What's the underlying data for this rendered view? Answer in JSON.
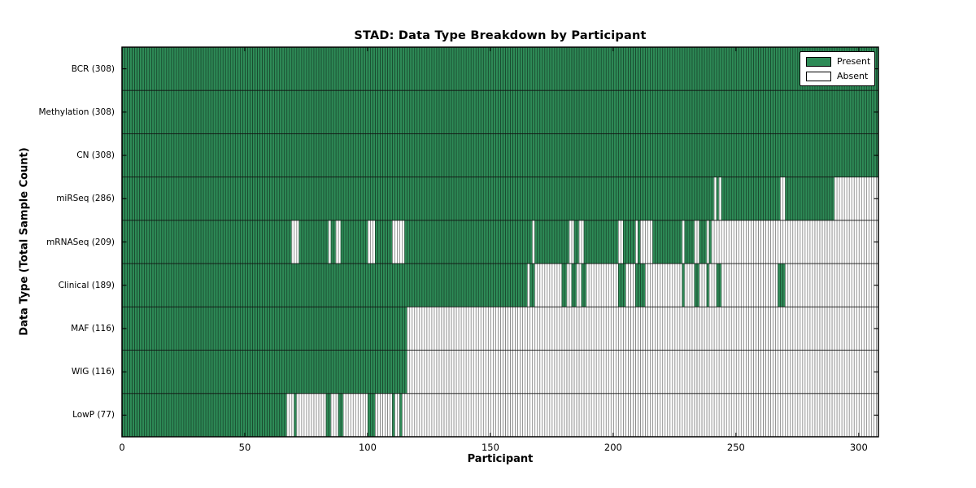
{
  "chart_data": {
    "type": "heatmap",
    "title": "STAD: Data Type Breakdown by Participant",
    "xlabel": "Participant",
    "ylabel": "Data Type (Total Sample Count)",
    "x_ticks": [
      0,
      50,
      100,
      150,
      200,
      250,
      300
    ],
    "x_range": [
      0,
      308
    ],
    "n_participants": 308,
    "grid": false,
    "legend": {
      "position": "upper right",
      "entries": [
        {
          "label": "Present",
          "color": "#2e8b57"
        },
        {
          "label": "Absent",
          "color": "#ffffff"
        }
      ]
    },
    "colors": {
      "present": "#2e8b57",
      "absent": "#ffffff",
      "bar_edge": "rgba(0,0,0,0.5)",
      "border": "#000000"
    },
    "rows": [
      {
        "data_type": "BCR",
        "label": "BCR (308)",
        "total": 308,
        "present_intervals": [
          [
            0,
            307
          ]
        ]
      },
      {
        "data_type": "Methylation",
        "label": "Methylation (308)",
        "total": 308,
        "present_intervals": [
          [
            0,
            307
          ]
        ]
      },
      {
        "data_type": "CN",
        "label": "CN (308)",
        "total": 308,
        "present_intervals": [
          [
            0,
            307
          ]
        ]
      },
      {
        "data_type": "miRSeq",
        "label": "miRSeq (286)",
        "total": 286,
        "present_intervals": [
          [
            0,
            240
          ],
          [
            242,
            242
          ],
          [
            244,
            267
          ],
          [
            270,
            289
          ]
        ]
      },
      {
        "data_type": "mRNASeq",
        "label": "mRNASeq (209)",
        "total": 209,
        "present_intervals": [
          [
            0,
            68
          ],
          [
            72,
            83
          ],
          [
            85,
            86
          ],
          [
            89,
            99
          ],
          [
            103,
            109
          ],
          [
            115,
            166
          ],
          [
            168,
            181
          ],
          [
            184,
            185
          ],
          [
            188,
            201
          ],
          [
            204,
            208
          ],
          [
            210,
            210
          ],
          [
            216,
            227
          ],
          [
            229,
            232
          ],
          [
            235,
            237
          ],
          [
            239,
            239
          ]
        ]
      },
      {
        "data_type": "Clinical",
        "label": "Clinical (189)",
        "total": 189,
        "present_intervals": [
          [
            0,
            164
          ],
          [
            166,
            167
          ],
          [
            179,
            180
          ],
          [
            183,
            184
          ],
          [
            187,
            188
          ],
          [
            202,
            204
          ],
          [
            209,
            212
          ],
          [
            228,
            228
          ],
          [
            233,
            234
          ],
          [
            238,
            238
          ],
          [
            242,
            243
          ],
          [
            267,
            269
          ]
        ]
      },
      {
        "data_type": "MAF",
        "label": "MAF (116)",
        "total": 116,
        "present_intervals": [
          [
            0,
            115
          ]
        ]
      },
      {
        "data_type": "WIG",
        "label": "WIG (116)",
        "total": 116,
        "present_intervals": [
          [
            0,
            115
          ]
        ]
      },
      {
        "data_type": "LowP",
        "label": "LowP (77)",
        "total": 77,
        "present_intervals": [
          [
            0,
            66
          ],
          [
            70,
            70
          ],
          [
            83,
            84
          ],
          [
            88,
            89
          ],
          [
            100,
            102
          ],
          [
            110,
            110
          ],
          [
            113,
            113
          ]
        ]
      }
    ]
  }
}
